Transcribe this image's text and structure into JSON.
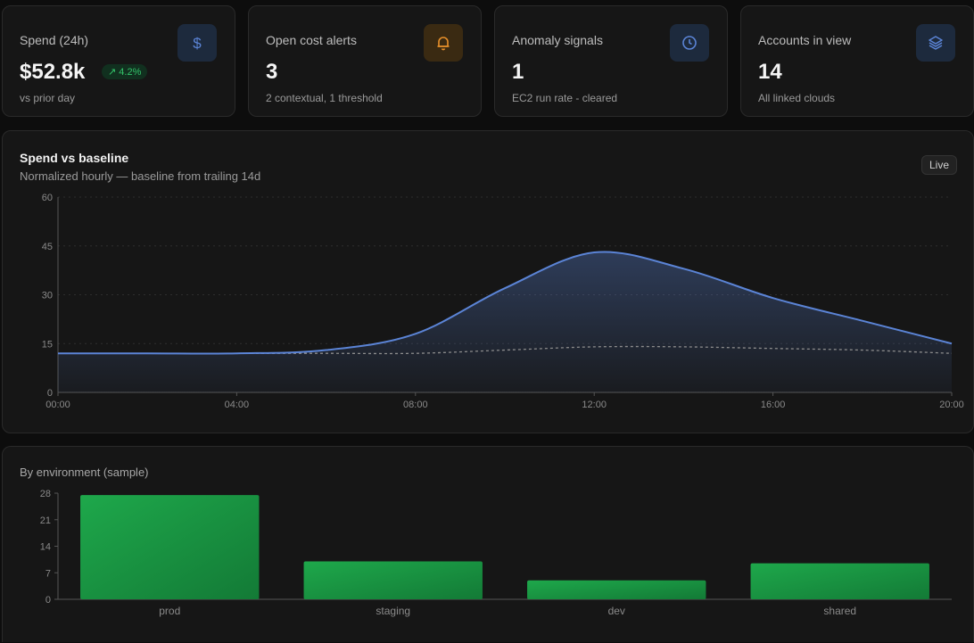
{
  "kpis": [
    {
      "label": "Spend (24h)",
      "value": "$52.8k",
      "badge": "↗ 4.2%",
      "sub": "vs prior day",
      "icon": "dollar-icon"
    },
    {
      "label": "Open cost alerts",
      "value": "3",
      "sub": "2 contextual, 1 threshold",
      "icon": "bell-icon"
    },
    {
      "label": "Anomaly signals",
      "value": "1",
      "sub": "EC2 run rate - cleared",
      "icon": "clock-icon"
    },
    {
      "label": "Accounts in view",
      "value": "14",
      "sub": "All linked clouds",
      "icon": "layers-icon"
    }
  ],
  "spend_chart": {
    "title": "Spend vs baseline",
    "subtitle": "Normalized hourly — baseline from trailing 14d",
    "live_label": "Live"
  },
  "env_chart": {
    "title": "By environment (sample)"
  },
  "colors": {
    "accent_blue": "#5b84d6",
    "bar_green": "#1ea84b",
    "up_green": "#33c46a",
    "amber": "#e8902a"
  },
  "chart_data": [
    {
      "type": "area",
      "x": [
        "00:00",
        "02:00",
        "04:00",
        "06:00",
        "08:00",
        "10:00",
        "12:00",
        "14:00",
        "16:00",
        "18:00",
        "20:00"
      ],
      "x_ticks": [
        "00:00",
        "04:00",
        "08:00",
        "12:00",
        "16:00",
        "20:00"
      ],
      "series": [
        {
          "values": [
            12,
            12,
            12,
            13,
            18,
            32,
            43,
            38,
            29,
            22,
            15
          ]
        },
        {
          "values": [
            12,
            12,
            12,
            12,
            12,
            13,
            14,
            14,
            13.5,
            13,
            12
          ]
        }
      ],
      "ylim": [
        0,
        60
      ],
      "y_ticks": [
        0,
        15,
        30,
        45,
        60
      ],
      "grid": true
    },
    {
      "type": "bar",
      "categories": [
        "prod",
        "staging",
        "dev",
        "shared"
      ],
      "values": [
        27.5,
        10,
        5.005,
        9.5
      ],
      "ylim": [
        0,
        28
      ],
      "y_ticks": [
        0,
        7,
        14,
        21,
        28
      ],
      "grid": false
    }
  ]
}
